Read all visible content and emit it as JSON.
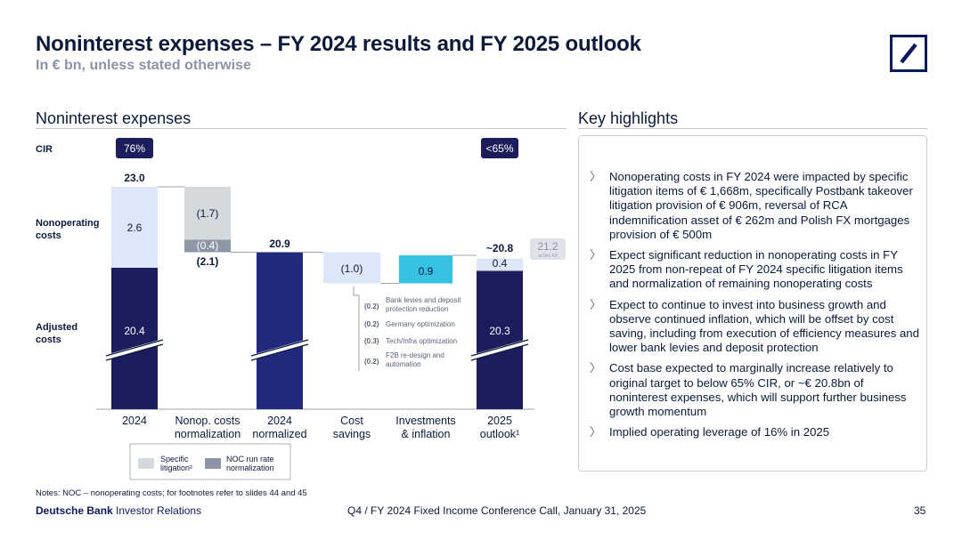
{
  "header": {
    "title": "Noninterest expenses – FY 2024 results and FY 2025 outlook",
    "subtitle": "In € bn, unless stated otherwise"
  },
  "logo": {
    "icon": "deutsche-bank-slash-logo",
    "color": "#0b1a5e"
  },
  "chart_section": {
    "title": "Noninterest expenses"
  },
  "highlights_section": {
    "title": "Key highlights",
    "bullet_icon": "chevron-right-icon",
    "items": [
      "Nonoperating costs in FY 2024 were impacted by specific litigation items of € 1,668m, specifically Postbank takeover litigation provision of € 906m, reversal of RCA indemnification asset of € 262m and Polish FX mortgages provision of € 500m",
      "Expect significant reduction in nonoperating costs in FY 2025 from non-repeat of FY 2024 specific litigation items and normalization of remaining nonoperating costs",
      "Expect to continue to invest into business growth and observe continued inflation, which will be offset by cost saving, including from execution of efficiency measures and lower bank levies and deposit protection",
      "Cost base expected to marginally increase relatively to original target to below 65% CIR, or ~€ 20.8bn of noninterest expenses, which will support further business growth momentum",
      "Implied operating leverage of 16% in 2025"
    ]
  },
  "chart_data": {
    "type": "bar",
    "subtype": "waterfall",
    "categories": [
      "2024",
      "Nonop. costs normalization",
      "2024 normalized",
      "Cost savings",
      "Investments & inflation",
      "2025 outlook¹"
    ],
    "category_lines": [
      [
        "2024"
      ],
      [
        "Nonop. costs",
        "normalization"
      ],
      [
        "2024",
        "normalized"
      ],
      [
        "Cost",
        "savings"
      ],
      [
        "Investments",
        "& inflation"
      ],
      [
        "2025",
        "outlook¹"
      ]
    ],
    "row_labels": {
      "cir": "CIR",
      "nonoperating": [
        "Nonoperating",
        "costs"
      ],
      "adjusted": [
        "Adjusted",
        "costs"
      ]
    },
    "cir": {
      "2024": "76%",
      "2025 outlook¹": "<65%"
    },
    "bars": {
      "adjusted_2024": 20.4,
      "nonoperating_2024": 2.6,
      "total_2024": "23.0",
      "specific_litigation": -1.7,
      "noc_run_rate_normalization": -0.4,
      "nonop_total_change": "(2.1)",
      "normalized_2024": 20.9,
      "cost_savings": -1.0,
      "investments_inflation": 0.9,
      "adjusted_2025": 20.3,
      "nonoperating_2025": 0.4,
      "total_2025": "~20.8"
    },
    "value_labels": {
      "adjusted_2024": "20.4",
      "nonoperating_2024": "2.6",
      "specific_litigation": "(1.7)",
      "noc_run_rate_normalization": "(0.4)",
      "normalized_2024": "20.9",
      "cost_savings": "(1.0)",
      "investments_inflation": "0.9",
      "adjusted_2025": "20.3",
      "nonoperating_2025": "0.4"
    },
    "fx_reference": {
      "value": "21.2",
      "note": "at Dec FX"
    },
    "cost_savings_breakdown": [
      {
        "value": "(0.2)",
        "label": [
          "Bank levies and deposit",
          "protection reduction"
        ]
      },
      {
        "value": "(0.2)",
        "label": [
          "Germany optimization"
        ]
      },
      {
        "value": "(0.3)",
        "label": [
          "Tech/Infra optimization"
        ]
      },
      {
        "value": "(0.2)",
        "label": [
          "F2B re-design and",
          "automation"
        ]
      }
    ],
    "legend": [
      {
        "name": [
          "Specific",
          "litigation²"
        ],
        "color": "#d4d9de"
      },
      {
        "name": [
          "NOC run rate",
          "normalization"
        ],
        "color": "#8d96a4"
      }
    ],
    "colors": {
      "adjusted": "#1b1d5c",
      "normalized": "#232a7d",
      "nonoperating": "#dce8f7",
      "specific_litigation": "#d4d9de",
      "noc_run_rate": "#8d96a4",
      "investments": "#37c2e4",
      "cir_badge": "#1b1d5c",
      "fx_badge": "#dfe3e8"
    }
  },
  "notes": "Notes: NOC – nonoperating costs; for footnotes refer to slides 44 and 45",
  "footer": {
    "brand": "Deutsche Bank",
    "division": " Investor Relations",
    "event": "Q4 / FY 2024 Fixed Income Conference Call, January 31, 2025",
    "page": "35"
  }
}
